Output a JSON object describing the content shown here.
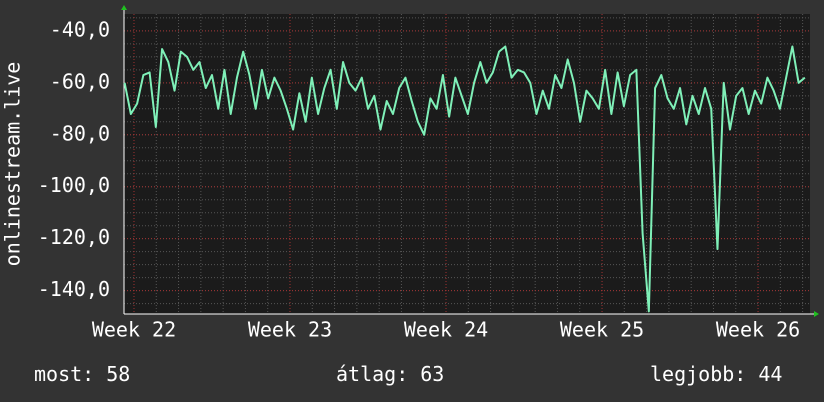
{
  "chart_data": {
    "type": "line",
    "y_label": "onlinestream.live",
    "x": [
      21.94,
      21.98,
      22.02,
      22.06,
      22.1,
      22.14,
      22.18,
      22.22,
      22.26,
      22.3,
      22.34,
      22.38,
      22.42,
      22.46,
      22.5,
      22.54,
      22.58,
      22.62,
      22.66,
      22.7,
      22.74,
      22.78,
      22.82,
      22.86,
      22.9,
      22.94,
      22.98,
      23.02,
      23.06,
      23.1,
      23.14,
      23.18,
      23.22,
      23.26,
      23.3,
      23.34,
      23.38,
      23.42,
      23.46,
      23.5,
      23.54,
      23.58,
      23.62,
      23.66,
      23.7,
      23.74,
      23.78,
      23.82,
      23.86,
      23.9,
      23.94,
      23.98,
      24.02,
      24.06,
      24.1,
      24.14,
      24.18,
      24.22,
      24.26,
      24.3,
      24.34,
      24.38,
      24.42,
      24.46,
      24.5,
      24.54,
      24.58,
      24.62,
      24.66,
      24.7,
      24.74,
      24.78,
      24.82,
      24.86,
      24.9,
      24.94,
      24.98,
      25.02,
      25.06,
      25.1,
      25.14,
      25.18,
      25.22,
      25.26,
      25.3,
      25.34,
      25.38,
      25.42,
      25.46,
      25.5,
      25.54,
      25.58,
      25.62,
      25.66,
      25.7,
      25.74,
      25.78,
      25.82,
      25.86,
      25.9,
      25.94,
      25.98,
      26.02,
      26.06,
      26.1,
      26.14,
      26.18,
      26.22,
      26.26,
      26.3
    ],
    "series": [
      {
        "name": "onlinestream.live",
        "color": "#7ff0b8",
        "values": [
          -60,
          -72,
          -68,
          -57,
          -56,
          -77,
          -47,
          -52,
          -63,
          -48,
          -50,
          -55,
          -52,
          -62,
          -57,
          -70,
          -55,
          -72,
          -58,
          -48,
          -57,
          -70,
          -55,
          -66,
          -58,
          -63,
          -70,
          -78,
          -64,
          -75,
          -58,
          -72,
          -62,
          -55,
          -70,
          -52,
          -60,
          -63,
          -58,
          -70,
          -65,
          -78,
          -67,
          -72,
          -62,
          -58,
          -67,
          -75,
          -80,
          -66,
          -70,
          -57,
          -73,
          -58,
          -65,
          -72,
          -60,
          -52,
          -60,
          -56,
          -48,
          -46,
          -58,
          -55,
          -56,
          -60,
          -72,
          -63,
          -70,
          -57,
          -62,
          -51,
          -60,
          -75,
          -63,
          -66,
          -70,
          -55,
          -72,
          -56,
          -69,
          -57,
          -55,
          -118,
          -148,
          -62,
          -57,
          -66,
          -70,
          -62,
          -76,
          -65,
          -72,
          -62,
          -70,
          -124,
          -60,
          -78,
          -65,
          -62,
          -72,
          -63,
          -68,
          -58,
          -63,
          -70,
          -58,
          -46,
          -60,
          -58
        ]
      }
    ],
    "xlim": [
      21.936,
      26.333
    ],
    "xticks": [
      {
        "value": 22,
        "label": "Week 22"
      },
      {
        "value": 23,
        "label": "Week 23"
      },
      {
        "value": 24,
        "label": "Week 24"
      },
      {
        "value": 25,
        "label": "Week 25"
      },
      {
        "value": 26,
        "label": "Week 26"
      }
    ],
    "ylim": [
      -149,
      -33.5
    ],
    "yticks": [
      {
        "value": -140,
        "label": "-140,0"
      },
      {
        "value": -120,
        "label": "-120,0"
      },
      {
        "value": -100,
        "label": "-100,0"
      },
      {
        "value": -80,
        "label": "-80,0"
      },
      {
        "value": -60,
        "label": "-60,0"
      },
      {
        "value": -40,
        "label": "-40,0"
      }
    ],
    "grid": true,
    "stats": [
      {
        "label": "most:",
        "value": 58
      },
      {
        "label": "átlag:",
        "value": 63
      },
      {
        "label": "legjobb:",
        "value": 44
      }
    ]
  }
}
